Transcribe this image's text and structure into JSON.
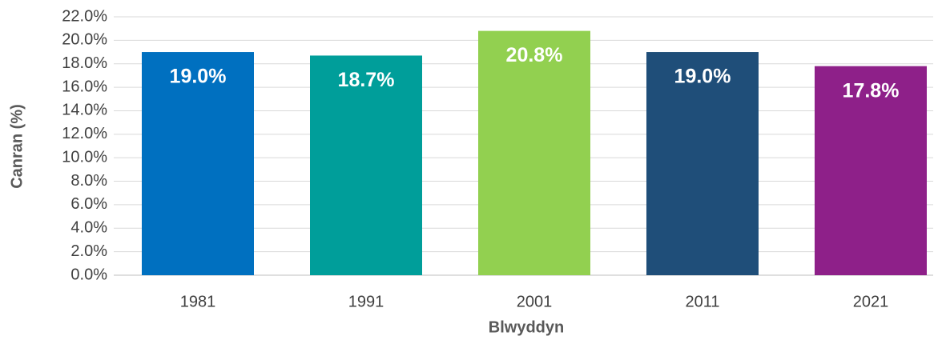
{
  "chart_data": {
    "type": "bar",
    "x_label": "Blwyddyn",
    "y_label": "Canran (%)",
    "categories": [
      "1981",
      "1991",
      "2001",
      "2011",
      "2021"
    ],
    "values": [
      19.0,
      18.7,
      20.8,
      19.0,
      17.8
    ],
    "value_labels": [
      "19.0%",
      "18.7%",
      "20.8%",
      "19.0%",
      "17.8%"
    ],
    "colors": [
      "#0070c0",
      "#009e9a",
      "#92d050",
      "#1f4e79",
      "#8e2089"
    ],
    "ylim": [
      0,
      22
    ],
    "yticks": [
      {
        "value": 0,
        "label": "0.0%"
      },
      {
        "value": 2,
        "label": "2.0%"
      },
      {
        "value": 4,
        "label": "4.0%"
      },
      {
        "value": 6,
        "label": "6.0%"
      },
      {
        "value": 8,
        "label": "8.0%"
      },
      {
        "value": 10,
        "label": "10.0%"
      },
      {
        "value": 12,
        "label": "12.0%"
      },
      {
        "value": 14,
        "label": "14.0%"
      },
      {
        "value": 16,
        "label": "16.0%"
      },
      {
        "value": 18,
        "label": "18.0%"
      },
      {
        "value": 20,
        "label": "20.0%"
      },
      {
        "value": 22,
        "label": "22.0%"
      }
    ],
    "grid": true
  }
}
